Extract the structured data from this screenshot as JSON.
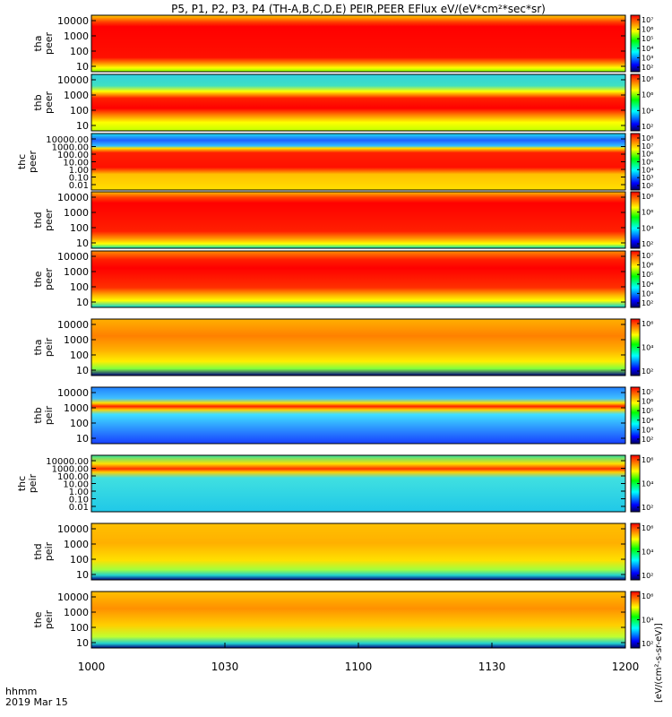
{
  "title": "P5, P1, P2, P3, P4 (TH-A,B,C,D,E) PEIR,PEER EFlux eV/(eV*cm²*sec*sr)",
  "colorbar_unit_label": "[eV/(cm²-s-sr-eV)]",
  "x_axis": {
    "label_lines": [
      "hhmm",
      "2019 Mar 15"
    ],
    "ticks": [
      "1000",
      "1030",
      "1100",
      "1130",
      "1200"
    ],
    "tick_fractions": [
      0,
      0.25,
      0.5,
      0.75,
      1.0
    ]
  },
  "chart_data": [
    {
      "type": "heatmap",
      "ylabel": [
        "tha",
        "peer"
      ],
      "yticks": [
        "10",
        "100",
        "1000",
        "10000"
      ],
      "colorbar_ticks": [
        "10²",
        "10³",
        "10⁴",
        "10⁵",
        "10⁶",
        "10⁷"
      ]
    },
    {
      "type": "heatmap",
      "ylabel": [
        "thb",
        "peer"
      ],
      "yticks": [
        "10",
        "100",
        "1000",
        "10000"
      ],
      "colorbar_ticks": [
        "10²",
        "10⁴",
        "10⁶",
        "10⁸"
      ]
    },
    {
      "type": "heatmap",
      "ylabel": [
        "thc",
        "peer"
      ],
      "yticks": [
        "0.01",
        "0.10",
        "1.00",
        "10.00",
        "100.00",
        "1000.00",
        "10000.00"
      ],
      "colorbar_ticks": [
        "10²",
        "10³",
        "10⁴",
        "10⁵",
        "10⁶",
        "10⁷",
        "10⁸"
      ]
    },
    {
      "type": "heatmap",
      "ylabel": [
        "thd",
        "peer"
      ],
      "yticks": [
        "10",
        "100",
        "1000",
        "10000"
      ],
      "colorbar_ticks": [
        "10²",
        "10⁴",
        "10⁶",
        "10⁸"
      ]
    },
    {
      "type": "heatmap",
      "ylabel": [
        "the",
        "peer"
      ],
      "yticks": [
        "10",
        "100",
        "1000",
        "10000"
      ],
      "colorbar_ticks": [
        "10²",
        "10³",
        "10⁴",
        "10⁵",
        "10⁶",
        "10⁷"
      ]
    },
    {
      "type": "heatmap",
      "ylabel": [
        "tha",
        "peir"
      ],
      "yticks": [
        "10",
        "100",
        "1000",
        "10000"
      ],
      "colorbar_ticks": [
        "10²",
        "10⁴",
        "10⁶"
      ]
    },
    {
      "type": "heatmap",
      "ylabel": [
        "thb",
        "peir"
      ],
      "yticks": [
        "10",
        "100",
        "1000",
        "10000"
      ],
      "colorbar_ticks": [
        "10²",
        "10³",
        "10⁴",
        "10⁵",
        "10⁶",
        "10⁷"
      ]
    },
    {
      "type": "heatmap",
      "ylabel": [
        "thc",
        "peir"
      ],
      "yticks": [
        "0.01",
        "0.10",
        "1.00",
        "10.00",
        "100.00",
        "1000.00",
        "10000.00"
      ],
      "colorbar_ticks": [
        "10²",
        "10⁴",
        "10⁶"
      ]
    },
    {
      "type": "heatmap",
      "ylabel": [
        "thd",
        "peir"
      ],
      "yticks": [
        "10",
        "100",
        "1000",
        "10000"
      ],
      "colorbar_ticks": [
        "10²",
        "10⁴",
        "10⁶"
      ]
    },
    {
      "type": "heatmap",
      "ylabel": [
        "the",
        "peir"
      ],
      "yticks": [
        "10",
        "100",
        "1000",
        "10000"
      ],
      "colorbar_ticks": [
        "10²",
        "10⁴",
        "10⁶"
      ]
    }
  ]
}
